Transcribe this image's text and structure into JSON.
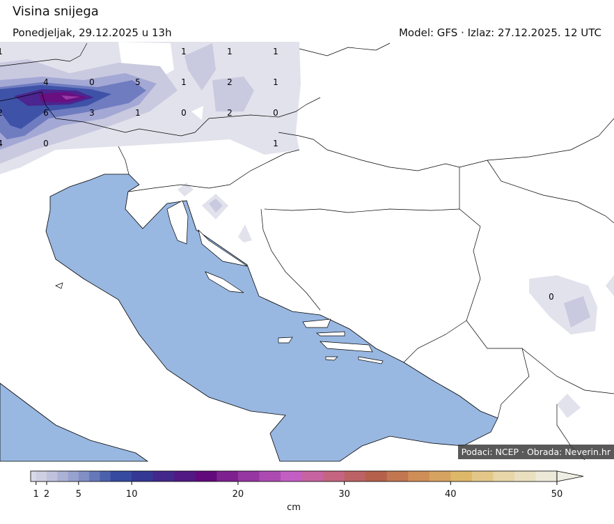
{
  "header": {
    "title": "Visina snijega",
    "date": "Ponedjeljak, 29.12.2025 u 13h",
    "model": "Model: GFS · Izlaz: 27.12.2025. 12 UTC"
  },
  "map": {
    "sea_color": "#98b7e1",
    "point_values": [
      {
        "v": "1",
        "row": 0,
        "col": 0
      },
      {
        "v": "1",
        "row": 0,
        "col": 4
      },
      {
        "v": "1",
        "row": 0,
        "col": 5
      },
      {
        "v": "1",
        "row": 0,
        "col": 6
      },
      {
        "v": "4",
        "row": 1,
        "col": 1
      },
      {
        "v": "0",
        "row": 1,
        "col": 2
      },
      {
        "v": "5",
        "row": 1,
        "col": 3
      },
      {
        "v": "1",
        "row": 1,
        "col": 4
      },
      {
        "v": "2",
        "row": 1,
        "col": 5
      },
      {
        "v": "1",
        "row": 1,
        "col": 6
      },
      {
        "v": "2",
        "row": 2,
        "col": 0
      },
      {
        "v": "6",
        "row": 2,
        "col": 1
      },
      {
        "v": "3",
        "row": 2,
        "col": 2
      },
      {
        "v": "1",
        "row": 2,
        "col": 3
      },
      {
        "v": "0",
        "row": 2,
        "col": 4
      },
      {
        "v": "2",
        "row": 2,
        "col": 5
      },
      {
        "v": "0",
        "row": 2,
        "col": 6
      },
      {
        "v": "4",
        "row": 3,
        "col": 0
      },
      {
        "v": "0",
        "row": 3,
        "col": 1
      },
      {
        "v": "1",
        "row": 3,
        "col": 6
      },
      {
        "v": "0",
        "row": 8,
        "col": 12
      }
    ],
    "attribution": "Podaci: NCEP · Obrada: Neverin.hr"
  },
  "colorbar": {
    "unit": "cm",
    "min": 0,
    "max": 50,
    "ticks": [
      "1",
      "2",
      "5",
      "10",
      "20",
      "30",
      "40",
      "50"
    ],
    "tick_values": [
      1,
      2,
      5,
      10,
      20,
      30,
      40,
      50
    ],
    "bins": [
      0.5,
      1,
      2,
      3,
      4,
      5,
      6,
      7,
      8,
      10,
      12,
      14,
      16,
      18,
      20,
      22,
      24,
      26,
      28,
      30,
      32,
      34,
      36,
      38,
      40,
      42,
      44,
      46,
      48,
      50
    ],
    "color_stops": [
      [
        0,
        "#e2e2ec"
      ],
      [
        2,
        "#c9c9e0"
      ],
      [
        5,
        "#8e9acb"
      ],
      [
        8,
        "#3e56a6"
      ],
      [
        10,
        "#2e3e98"
      ],
      [
        14,
        "#4a2188"
      ],
      [
        17,
        "#620a7c"
      ],
      [
        20,
        "#8a2c98"
      ],
      [
        25,
        "#c35ec3"
      ],
      [
        28,
        "#c9668f"
      ],
      [
        33,
        "#b4604a"
      ],
      [
        37,
        "#cf8e58"
      ],
      [
        41,
        "#ddb868"
      ],
      [
        45,
        "#e8d6a8"
      ],
      [
        50,
        "#eeeee4"
      ]
    ]
  }
}
